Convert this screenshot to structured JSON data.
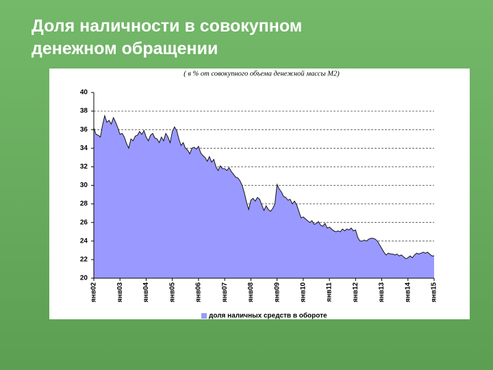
{
  "title": "Доля наличности в совокупном денежном обращении",
  "chart_data": {
    "type": "area",
    "subtitle": "( в % от совокупного объема денежной массы М2)",
    "categories": [
      "янв02",
      null,
      null,
      null,
      null,
      null,
      null,
      null,
      null,
      null,
      null,
      null,
      "янв03",
      null,
      null,
      null,
      null,
      null,
      null,
      null,
      null,
      null,
      null,
      null,
      "янв04",
      null,
      null,
      null,
      null,
      null,
      null,
      null,
      null,
      null,
      null,
      null,
      "янв05",
      null,
      null,
      null,
      null,
      null,
      null,
      null,
      null,
      null,
      null,
      null,
      "янв06",
      null,
      null,
      null,
      null,
      null,
      null,
      null,
      null,
      null,
      null,
      null,
      "янв07",
      null,
      null,
      null,
      null,
      null,
      null,
      null,
      null,
      null,
      null,
      null,
      "янв08",
      null,
      null,
      null,
      null,
      null,
      null,
      null,
      null,
      null,
      null,
      null,
      "янв09",
      null,
      null,
      null,
      null,
      null,
      null,
      null,
      null,
      null,
      null,
      null,
      "янв10",
      null,
      null,
      null,
      null,
      null,
      null,
      null,
      null,
      null,
      null,
      null,
      "янв11",
      null,
      null,
      null,
      null,
      null,
      null,
      null,
      null,
      null,
      null,
      null,
      "янв12",
      null,
      null,
      null,
      null,
      null,
      null,
      null,
      null,
      null,
      null,
      null,
      "янв13",
      null,
      null,
      null,
      null,
      null,
      null,
      null,
      null,
      null,
      null,
      null,
      "янв14",
      null,
      null,
      null,
      null,
      null,
      null,
      null,
      null,
      null,
      null,
      null,
      "янв15"
    ],
    "series": [
      {
        "name": "доля наличных средств в обороте",
        "color": "#9999ff",
        "values": [
          36.2,
          35.5,
          35.4,
          35.2,
          36.5,
          37.5,
          36.8,
          37.0,
          36.6,
          37.3,
          36.8,
          36.2,
          35.5,
          35.6,
          35.2,
          34.5,
          34.0,
          35.0,
          34.8,
          35.3,
          35.4,
          35.8,
          35.5,
          35.9,
          35.2,
          34.8,
          35.4,
          35.6,
          35.1,
          35.0,
          34.6,
          35.2,
          34.8,
          35.6,
          35.2,
          34.6,
          35.8,
          36.3,
          35.9,
          35.0,
          34.3,
          34.6,
          34.0,
          33.8,
          33.4,
          34.0,
          34.1,
          33.9,
          34.2,
          33.5,
          33.2,
          33.0,
          32.6,
          33.1,
          32.5,
          32.8,
          32.0,
          31.6,
          32.1,
          31.8,
          31.8,
          31.6,
          31.9,
          31.5,
          31.2,
          30.9,
          30.8,
          30.5,
          30.0,
          29.2,
          28.2,
          27.4,
          28.4,
          28.6,
          28.3,
          28.7,
          28.5,
          27.9,
          27.3,
          27.8,
          27.4,
          27.2,
          27.5,
          28.0,
          30.1,
          29.6,
          29.3,
          28.8,
          28.7,
          28.4,
          28.5,
          28.0,
          28.3,
          27.9,
          27.2,
          26.5,
          26.6,
          26.4,
          26.2,
          26.0,
          26.2,
          25.8,
          25.9,
          26.1,
          25.7,
          25.6,
          25.9,
          25.4,
          25.5,
          25.3,
          25.1,
          25.0,
          25.1,
          25.0,
          25.3,
          25.1,
          25.3,
          25.2,
          25.4,
          25.1,
          25.2,
          24.4,
          24.0,
          24.0,
          24.1,
          24.0,
          24.2,
          24.3,
          24.3,
          24.2,
          24.0,
          23.6,
          23.2,
          22.8,
          22.5,
          22.7,
          22.6,
          22.6,
          22.5,
          22.6,
          22.4,
          22.5,
          22.3,
          22.1,
          22.2,
          22.4,
          22.2,
          22.5,
          22.7,
          22.6,
          22.7,
          22.8,
          22.7,
          22.8,
          22.6,
          22.4,
          22.4
        ]
      }
    ],
    "ylim": [
      20,
      40
    ],
    "yticks": [
      20,
      22,
      24,
      26,
      28,
      30,
      32,
      34,
      36,
      38,
      40
    ],
    "grid": true
  }
}
